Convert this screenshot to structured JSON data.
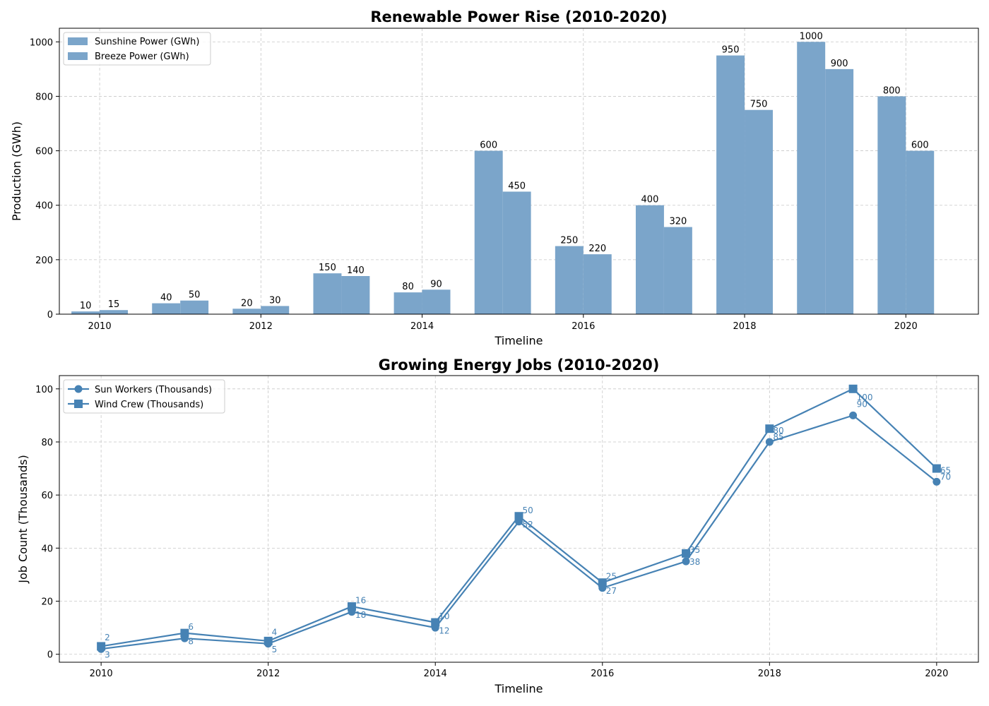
{
  "chart_data": [
    {
      "type": "bar",
      "title": "Renewable Power Rise (2010-2020)",
      "xlabel": "Timeline",
      "ylabel": "Production (GWh)",
      "ylim": [
        0,
        1050
      ],
      "xlim": [
        2009.5,
        2020.9
      ],
      "x_ticks": [
        2010,
        2012,
        2014,
        2016,
        2018,
        2020
      ],
      "y_ticks": [
        0,
        200,
        400,
        600,
        800,
        1000
      ],
      "categories": [
        2010,
        2011,
        2012,
        2013,
        2014,
        2015,
        2016,
        2017,
        2018,
        2019,
        2020
      ],
      "series": [
        {
          "name": "Sunshine Power (GWh)",
          "color": "#7ba5ca",
          "values": [
            10,
            40,
            20,
            150,
            80,
            600,
            250,
            400,
            950,
            1000,
            800
          ]
        },
        {
          "name": "Breeze Power (GWh)",
          "color": "#7ba5ca",
          "values": [
            15,
            50,
            30,
            140,
            90,
            450,
            220,
            320,
            750,
            900,
            600
          ]
        }
      ],
      "grid": true,
      "legend_position": "top-left"
    },
    {
      "type": "line",
      "title": "Growing Energy Jobs (2010-2020)",
      "xlabel": "Timeline",
      "ylabel": "Job Count (Thousands)",
      "ylim": [
        -3,
        105
      ],
      "xlim": [
        2009.5,
        2020.5
      ],
      "x_ticks": [
        2010,
        2012,
        2014,
        2016,
        2018,
        2020
      ],
      "y_ticks": [
        0,
        20,
        40,
        60,
        80,
        100
      ],
      "x": [
        2010,
        2011,
        2012,
        2013,
        2014,
        2015,
        2016,
        2017,
        2018,
        2019,
        2020
      ],
      "series": [
        {
          "name": "Sun Workers (Thousands)",
          "color": "#4682b4",
          "marker": "circle",
          "values": [
            2,
            6,
            4,
            16,
            10,
            50,
            25,
            35,
            80,
            90,
            65
          ]
        },
        {
          "name": "Wind Crew (Thousands)",
          "color": "#4682b4",
          "marker": "square",
          "values": [
            3,
            8,
            5,
            18,
            12,
            52,
            27,
            38,
            85,
            100,
            70
          ]
        }
      ],
      "grid": true,
      "legend_position": "top-left"
    }
  ]
}
